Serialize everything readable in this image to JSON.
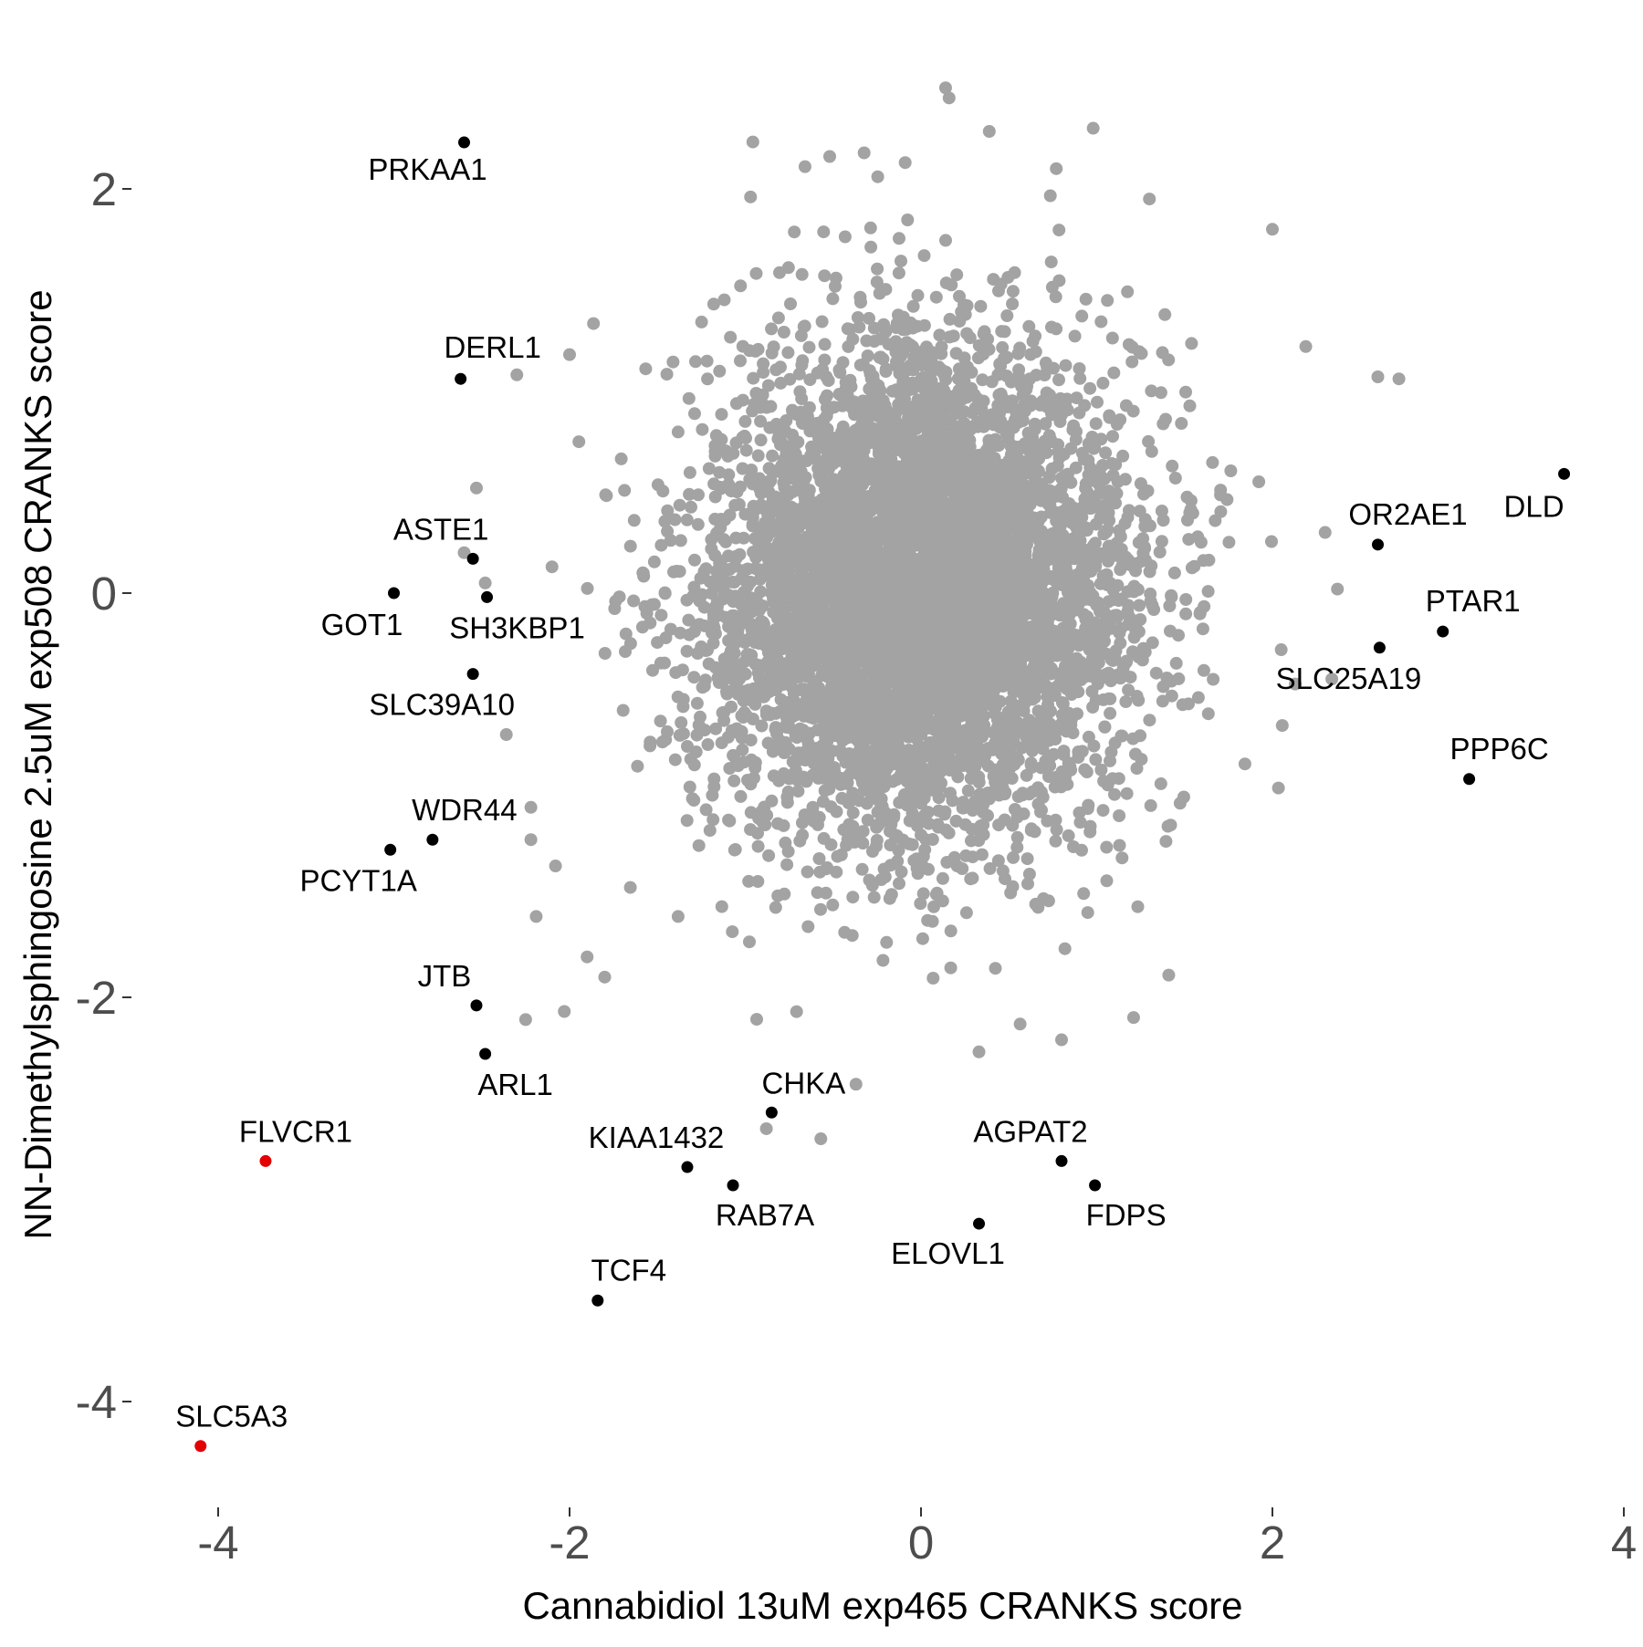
{
  "chart_data": {
    "type": "scatter",
    "title": "",
    "xlabel": "Cannabidiol 13uM exp465 CRANKS score",
    "ylabel": "NN-Dimethylsphingosine 2.5uM exp508 CRANKS score",
    "xlim": [
      -4.15,
      4.0
    ],
    "ylim": [
      -4.55,
      2.55
    ],
    "x_ticks": [
      -4,
      -2,
      0,
      2,
      4
    ],
    "x_tick_labels": [
      "-4",
      "-2",
      "0",
      "2",
      "4"
    ],
    "y_ticks": [
      -4,
      -2,
      0,
      2
    ],
    "y_tick_labels": [
      "-4",
      "-2",
      "0",
      "2"
    ],
    "grid": false,
    "legend": "none",
    "colors": {
      "background_points": "#a3a3a3",
      "labeled_points": "#000000",
      "highlighted_points": "#e30000"
    },
    "background_cloud": {
      "description": "approx. 6000 unlabeled genes",
      "approx_count": 6000,
      "center": [
        0.0,
        0.0
      ],
      "sd_x": 0.6,
      "sd_y": 0.6,
      "x_range": [
        -2.6,
        2.5
      ],
      "y_range": [
        -2.5,
        2.45
      ]
    },
    "labeled_points": [
      {
        "label": "PRKAA1",
        "x": -2.6,
        "y": 2.23,
        "color": "black"
      },
      {
        "label": "DERL1",
        "x": -2.62,
        "y": 1.06,
        "color": "black"
      },
      {
        "label": "ASTE1",
        "x": -2.55,
        "y": 0.17,
        "color": "black"
      },
      {
        "label": "GOT1",
        "x": -3.0,
        "y": 0.0,
        "color": "black"
      },
      {
        "label": "SH3KBP1",
        "x": -2.47,
        "y": -0.02,
        "color": "black"
      },
      {
        "label": "SLC39A10",
        "x": -2.55,
        "y": -0.4,
        "color": "black"
      },
      {
        "label": "WDR44",
        "x": -2.78,
        "y": -1.22,
        "color": "black"
      },
      {
        "label": "PCYT1A",
        "x": -3.02,
        "y": -1.27,
        "color": "black"
      },
      {
        "label": "JTB",
        "x": -2.53,
        "y": -2.04,
        "color": "black"
      },
      {
        "label": "ARL1",
        "x": -2.48,
        "y": -2.28,
        "color": "black"
      },
      {
        "label": "FLVCR1",
        "x": -3.73,
        "y": -2.81,
        "color": "red"
      },
      {
        "label": "SLC5A3",
        "x": -4.1,
        "y": -4.22,
        "color": "red"
      },
      {
        "label": "CHKA",
        "x": -0.85,
        "y": -2.57,
        "color": "black"
      },
      {
        "label": "KIAA1432",
        "x": -1.33,
        "y": -2.84,
        "color": "black"
      },
      {
        "label": "RAB7A",
        "x": -1.07,
        "y": -2.93,
        "color": "black"
      },
      {
        "label": "TCF4",
        "x": -1.84,
        "y": -3.5,
        "color": "black"
      },
      {
        "label": "AGPAT2",
        "x": 0.8,
        "y": -2.81,
        "color": "black"
      },
      {
        "label": "FDPS",
        "x": 0.99,
        "y": -2.93,
        "color": "black"
      },
      {
        "label": "ELOVL1",
        "x": 0.33,
        "y": -3.12,
        "color": "black"
      },
      {
        "label": "DLD",
        "x": 3.66,
        "y": 0.59,
        "color": "black"
      },
      {
        "label": "OR2AE1",
        "x": 2.6,
        "y": 0.24,
        "color": "black"
      },
      {
        "label": "PTAR1",
        "x": 2.97,
        "y": -0.19,
        "color": "black"
      },
      {
        "label": "SLC25A19",
        "x": 2.61,
        "y": -0.27,
        "color": "black"
      },
      {
        "label": "PPP6C",
        "x": 3.12,
        "y": -0.92,
        "color": "black"
      }
    ],
    "outlier_gray_points": [
      {
        "x": 0.14,
        "y": 2.5
      },
      {
        "x": 0.16,
        "y": 2.45
      },
      {
        "x": 0.98,
        "y": 2.3
      },
      {
        "x": -0.66,
        "y": 2.11
      },
      {
        "x": -0.09,
        "y": 2.13
      },
      {
        "x": 0.77,
        "y": 2.1
      },
      {
        "x": -0.97,
        "y": 1.96
      },
      {
        "x": 2.0,
        "y": 1.8
      },
      {
        "x": 1.3,
        "y": 1.95
      },
      {
        "x": -2.3,
        "y": 1.08
      },
      {
        "x": -2.0,
        "y": 1.18
      },
      {
        "x": 2.6,
        "y": 1.07
      },
      {
        "x": 2.72,
        "y": 1.06
      },
      {
        "x": 2.19,
        "y": 1.22
      },
      {
        "x": -2.53,
        "y": 0.52
      },
      {
        "x": -2.6,
        "y": 0.2
      },
      {
        "x": -2.48,
        "y": 0.05
      },
      {
        "x": -2.1,
        "y": 0.13
      },
      {
        "x": 2.3,
        "y": 0.3
      },
      {
        "x": 2.37,
        "y": 0.02
      },
      {
        "x": 2.13,
        "y": -0.45
      },
      {
        "x": 2.05,
        "y": -0.28
      },
      {
        "x": -2.36,
        "y": -0.7
      },
      {
        "x": -2.22,
        "y": -1.06
      },
      {
        "x": -2.22,
        "y": -1.22
      },
      {
        "x": -2.08,
        "y": -1.35
      },
      {
        "x": -2.19,
        "y": -1.6
      },
      {
        "x": -1.9,
        "y": -1.8
      },
      {
        "x": -2.03,
        "y": -2.07
      },
      {
        "x": -2.25,
        "y": -2.11
      },
      {
        "x": -1.8,
        "y": -1.9
      },
      {
        "x": -0.37,
        "y": -2.43
      },
      {
        "x": -0.57,
        "y": -2.7
      },
      {
        "x": -0.88,
        "y": -2.65
      },
      {
        "x": 0.33,
        "y": -2.27
      },
      {
        "x": 0.8,
        "y": -2.21
      },
      {
        "x": 1.21,
        "y": -2.1
      },
      {
        "x": 1.41,
        "y": -1.89
      }
    ]
  }
}
